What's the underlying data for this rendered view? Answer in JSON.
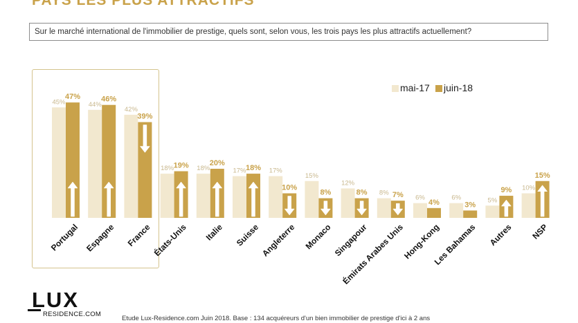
{
  "title": "PAYS LES PLUS ATTRACTIFS",
  "question": "Sur le marché international de l'immobilier de prestige, quels sont, selon vous, les trois pays les plus attractifs actuellement?",
  "legend": {
    "series_a": "mai-17",
    "series_b": "juin-18"
  },
  "colors": {
    "series_a": "#f2e8cf",
    "series_b": "#c9a24a",
    "accent": "#c9a24a"
  },
  "logo": {
    "text": "LUX",
    "subtitle": "RESIDENCE.COM"
  },
  "footnote": "Etude Lux-Residence.com Juin 2018. Base : 134 acquéreurs d'un bien immobilier de prestige d'ici à 2 ans",
  "chart_data": {
    "type": "bar",
    "categories": [
      "Portugal",
      "Espagne",
      "France",
      "États-Unis",
      "Italie",
      "Suisse",
      "Angleterre",
      "Monaco",
      "Singapour",
      "Émirats Arabes Unis",
      "Hong-Kong",
      "Les Bahamas",
      "Autres",
      "NSP"
    ],
    "series": [
      {
        "name": "mai-17",
        "values": [
          45,
          44,
          42,
          18,
          18,
          17,
          17,
          15,
          12,
          8,
          6,
          6,
          5,
          10
        ],
        "labels": [
          "45%",
          "44%",
          "42%",
          "18%",
          "18%",
          "17%",
          "17%",
          "15%",
          "12%",
          "8%",
          "6%",
          "6%",
          "5%",
          "10%"
        ]
      },
      {
        "name": "juin-18",
        "values": [
          47,
          46,
          39,
          19,
          20,
          18,
          10,
          8,
          8,
          7,
          4,
          3,
          9,
          15
        ],
        "labels": [
          "47%",
          "46%",
          "39%",
          "19%",
          "20%",
          "18%",
          "10%",
          "8%",
          "8%",
          "7%",
          "4%",
          "3%",
          "9%",
          "15%"
        ]
      }
    ],
    "trend": [
      "up",
      "up",
      "down",
      "up",
      "up",
      "up",
      "down",
      "down",
      "down",
      "down",
      "",
      "",
      "up",
      "up"
    ],
    "ylim": [
      0,
      50
    ],
    "legend_position": "top-right",
    "grid": false,
    "highlighted_categories": [
      "Portugal",
      "Espagne",
      "France"
    ]
  }
}
